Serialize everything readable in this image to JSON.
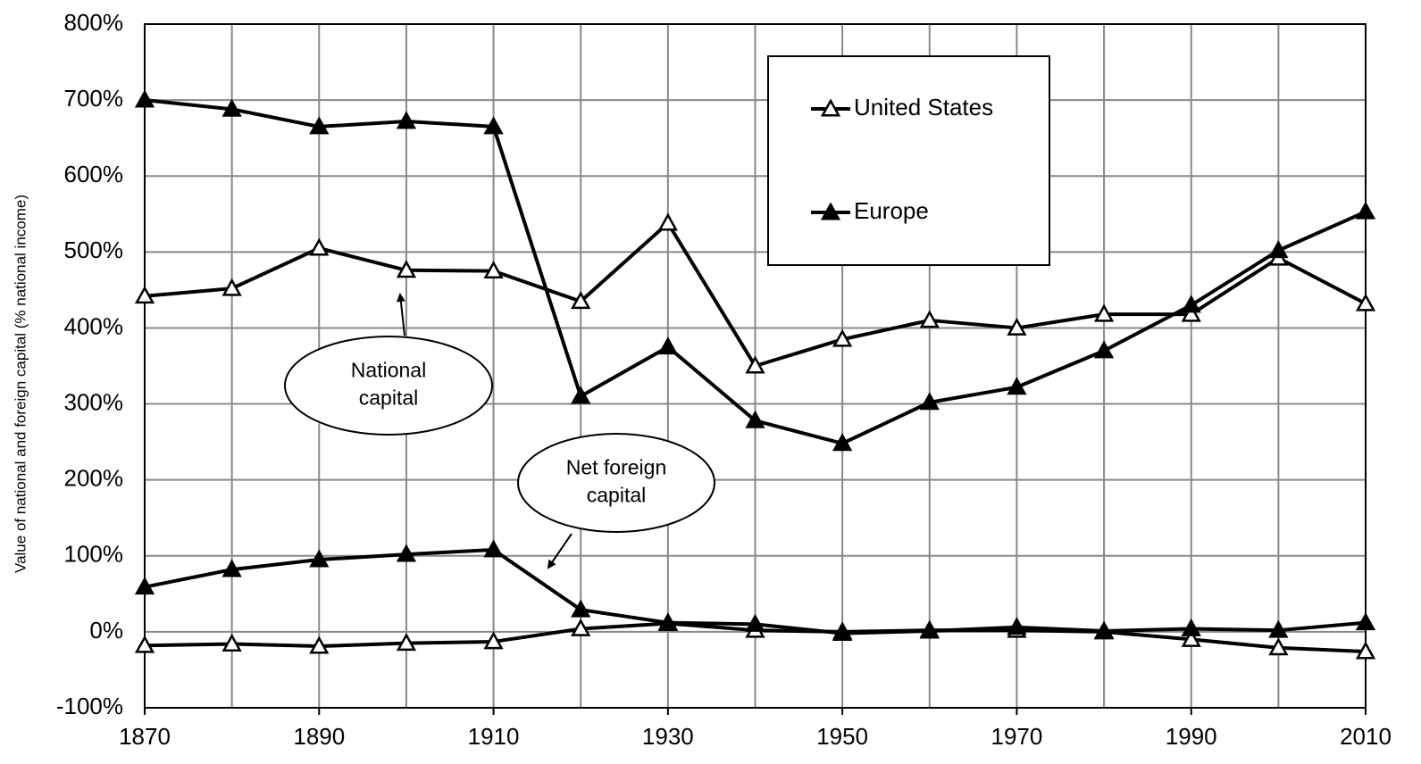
{
  "chart_data": {
    "type": "line",
    "y_axis_label": "Value of national and foreign capital (% national income)",
    "x": [
      1870,
      1880,
      1890,
      1900,
      1910,
      1920,
      1930,
      1940,
      1950,
      1960,
      1970,
      1980,
      1990,
      2000,
      2010
    ],
    "series": [
      {
        "name": "United States",
        "color": "#000000",
        "marker": "open-triangle",
        "values": [
          442,
          452,
          505,
          476,
          475,
          435,
          538,
          350,
          385,
          410,
          400,
          418,
          418,
          492,
          432
        ],
        "foreign_values": [
          -18,
          -16,
          -19,
          -15,
          -13,
          4,
          11,
          2,
          0,
          2,
          2,
          0,
          -10,
          -21,
          -26
        ]
      },
      {
        "name": "Europe",
        "color": "#000000",
        "marker": "filled-triangle",
        "values": [
          700,
          688,
          665,
          672,
          665,
          310,
          375,
          278,
          248,
          302,
          322,
          370,
          430,
          502,
          553
        ],
        "foreign_values": [
          59,
          82,
          95,
          102,
          108,
          29,
          12,
          10,
          -2,
          1,
          6,
          1,
          4,
          2,
          12
        ]
      }
    ],
    "annotations": [
      {
        "lines": [
          "National",
          "capital"
        ],
        "target": "values"
      },
      {
        "lines": [
          "Net foreign",
          "capital"
        ],
        "target": "foreign_values"
      }
    ],
    "xlim": [
      1870,
      2010
    ],
    "xticks": [
      1870,
      1890,
      1910,
      1930,
      1950,
      1970,
      1990,
      2010
    ],
    "xgrid": [
      1870,
      1880,
      1890,
      1900,
      1910,
      1920,
      1930,
      1940,
      1950,
      1960,
      1970,
      1980,
      1990,
      2000,
      2010
    ],
    "ylim": [
      -100,
      800
    ],
    "yticks": [
      {
        "value": -100,
        "label": "-100%"
      },
      {
        "value": 0,
        "label": "0%"
      },
      {
        "value": 100,
        "label": "100%"
      },
      {
        "value": 200,
        "label": "200%"
      },
      {
        "value": 300,
        "label": "300%"
      },
      {
        "value": 400,
        "label": "400%"
      },
      {
        "value": 500,
        "label": "500%"
      },
      {
        "value": 600,
        "label": "600%"
      },
      {
        "value": 700,
        "label": "700%"
      },
      {
        "value": 800,
        "label": "800%"
      }
    ],
    "grid": true,
    "legend": "top-right"
  }
}
